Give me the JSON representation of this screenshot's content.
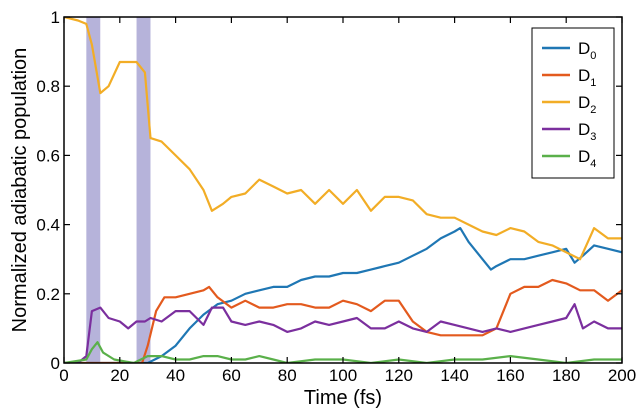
{
  "chart_data": {
    "type": "line",
    "title": "",
    "xlabel": "Time (fs)",
    "ylabel": "Normalized adiabatic population",
    "xlim": [
      0,
      200
    ],
    "ylim": [
      0,
      1
    ],
    "xticks": [
      0,
      20,
      40,
      60,
      80,
      100,
      120,
      140,
      160,
      180,
      200
    ],
    "yticks": [
      0,
      0.2,
      0.4,
      0.6,
      0.8,
      1
    ],
    "ytick_labels": [
      "0",
      "0.2",
      "0.4",
      "0.6",
      "0.8",
      "1"
    ],
    "grid": false,
    "legend": "top-right",
    "shaded_regions": [
      [
        8,
        13
      ],
      [
        26,
        31
      ]
    ],
    "shade_color": "#a9a6d4",
    "series": [
      {
        "name": "D",
        "sub": "0",
        "color": "#1f77b4",
        "points": [
          [
            0,
            0
          ],
          [
            30,
            0
          ],
          [
            35,
            0.02
          ],
          [
            40,
            0.05
          ],
          [
            45,
            0.1
          ],
          [
            50,
            0.14
          ],
          [
            55,
            0.17
          ],
          [
            60,
            0.18
          ],
          [
            65,
            0.2
          ],
          [
            70,
            0.21
          ],
          [
            75,
            0.22
          ],
          [
            80,
            0.22
          ],
          [
            85,
            0.24
          ],
          [
            90,
            0.25
          ],
          [
            95,
            0.25
          ],
          [
            100,
            0.26
          ],
          [
            105,
            0.26
          ],
          [
            110,
            0.27
          ],
          [
            115,
            0.28
          ],
          [
            120,
            0.29
          ],
          [
            125,
            0.31
          ],
          [
            130,
            0.33
          ],
          [
            135,
            0.36
          ],
          [
            140,
            0.38
          ],
          [
            142,
            0.39
          ],
          [
            145,
            0.35
          ],
          [
            150,
            0.3
          ],
          [
            153,
            0.27
          ],
          [
            155,
            0.28
          ],
          [
            160,
            0.3
          ],
          [
            165,
            0.3
          ],
          [
            170,
            0.31
          ],
          [
            175,
            0.32
          ],
          [
            180,
            0.33
          ],
          [
            183,
            0.29
          ],
          [
            186,
            0.31
          ],
          [
            190,
            0.34
          ],
          [
            195,
            0.33
          ],
          [
            200,
            0.32
          ]
        ]
      },
      {
        "name": "D",
        "sub": "1",
        "color": "#e35a1e",
        "points": [
          [
            0,
            0
          ],
          [
            28,
            0
          ],
          [
            30,
            0.05
          ],
          [
            33,
            0.15
          ],
          [
            36,
            0.19
          ],
          [
            40,
            0.19
          ],
          [
            45,
            0.2
          ],
          [
            50,
            0.21
          ],
          [
            52,
            0.22
          ],
          [
            55,
            0.19
          ],
          [
            60,
            0.16
          ],
          [
            65,
            0.18
          ],
          [
            70,
            0.16
          ],
          [
            75,
            0.16
          ],
          [
            80,
            0.17
          ],
          [
            85,
            0.17
          ],
          [
            90,
            0.16
          ],
          [
            95,
            0.16
          ],
          [
            100,
            0.18
          ],
          [
            105,
            0.17
          ],
          [
            110,
            0.15
          ],
          [
            115,
            0.18
          ],
          [
            120,
            0.18
          ],
          [
            125,
            0.12
          ],
          [
            130,
            0.09
          ],
          [
            135,
            0.08
          ],
          [
            140,
            0.08
          ],
          [
            145,
            0.08
          ],
          [
            150,
            0.08
          ],
          [
            155,
            0.1
          ],
          [
            160,
            0.2
          ],
          [
            165,
            0.22
          ],
          [
            170,
            0.22
          ],
          [
            175,
            0.24
          ],
          [
            180,
            0.23
          ],
          [
            185,
            0.21
          ],
          [
            190,
            0.21
          ],
          [
            195,
            0.18
          ],
          [
            200,
            0.21
          ]
        ]
      },
      {
        "name": "D",
        "sub": "2",
        "color": "#f2ad26",
        "points": [
          [
            0,
            1
          ],
          [
            5,
            0.99
          ],
          [
            8,
            0.98
          ],
          [
            10,
            0.92
          ],
          [
            13,
            0.78
          ],
          [
            16,
            0.8
          ],
          [
            20,
            0.87
          ],
          [
            23,
            0.87
          ],
          [
            26,
            0.87
          ],
          [
            29,
            0.84
          ],
          [
            31,
            0.65
          ],
          [
            35,
            0.64
          ],
          [
            40,
            0.6
          ],
          [
            45,
            0.56
          ],
          [
            50,
            0.5
          ],
          [
            53,
            0.44
          ],
          [
            57,
            0.46
          ],
          [
            60,
            0.48
          ],
          [
            65,
            0.49
          ],
          [
            70,
            0.53
          ],
          [
            75,
            0.51
          ],
          [
            80,
            0.49
          ],
          [
            85,
            0.5
          ],
          [
            90,
            0.46
          ],
          [
            95,
            0.5
          ],
          [
            100,
            0.46
          ],
          [
            105,
            0.5
          ],
          [
            110,
            0.44
          ],
          [
            115,
            0.48
          ],
          [
            120,
            0.48
          ],
          [
            125,
            0.47
          ],
          [
            130,
            0.43
          ],
          [
            135,
            0.42
          ],
          [
            140,
            0.42
          ],
          [
            145,
            0.4
          ],
          [
            150,
            0.38
          ],
          [
            155,
            0.37
          ],
          [
            160,
            0.39
          ],
          [
            165,
            0.38
          ],
          [
            170,
            0.35
          ],
          [
            175,
            0.34
          ],
          [
            180,
            0.32
          ],
          [
            185,
            0.3
          ],
          [
            190,
            0.39
          ],
          [
            195,
            0.36
          ],
          [
            200,
            0.36
          ]
        ]
      },
      {
        "name": "D",
        "sub": "3",
        "color": "#7b2f9e",
        "points": [
          [
            0,
            0
          ],
          [
            5,
            0
          ],
          [
            8,
            0.02
          ],
          [
            10,
            0.15
          ],
          [
            13,
            0.16
          ],
          [
            16,
            0.13
          ],
          [
            20,
            0.12
          ],
          [
            23,
            0.1
          ],
          [
            26,
            0.12
          ],
          [
            29,
            0.12
          ],
          [
            31,
            0.13
          ],
          [
            35,
            0.12
          ],
          [
            40,
            0.15
          ],
          [
            45,
            0.15
          ],
          [
            50,
            0.11
          ],
          [
            53,
            0.16
          ],
          [
            57,
            0.16
          ],
          [
            60,
            0.12
          ],
          [
            65,
            0.11
          ],
          [
            70,
            0.12
          ],
          [
            75,
            0.11
          ],
          [
            80,
            0.09
          ],
          [
            85,
            0.1
          ],
          [
            90,
            0.12
          ],
          [
            95,
            0.11
          ],
          [
            100,
            0.12
          ],
          [
            105,
            0.13
          ],
          [
            110,
            0.1
          ],
          [
            115,
            0.1
          ],
          [
            120,
            0.12
          ],
          [
            125,
            0.1
          ],
          [
            130,
            0.09
          ],
          [
            135,
            0.12
          ],
          [
            140,
            0.11
          ],
          [
            145,
            0.1
          ],
          [
            150,
            0.09
          ],
          [
            155,
            0.1
          ],
          [
            160,
            0.09
          ],
          [
            165,
            0.1
          ],
          [
            170,
            0.11
          ],
          [
            175,
            0.12
          ],
          [
            180,
            0.13
          ],
          [
            183,
            0.17
          ],
          [
            186,
            0.1
          ],
          [
            190,
            0.12
          ],
          [
            195,
            0.1
          ],
          [
            200,
            0.1
          ]
        ]
      },
      {
        "name": "D",
        "sub": "4",
        "color": "#5ab04a",
        "points": [
          [
            0,
            0
          ],
          [
            8,
            0.01
          ],
          [
            10,
            0.04
          ],
          [
            12,
            0.06
          ],
          [
            14,
            0.03
          ],
          [
            18,
            0.01
          ],
          [
            25,
            0
          ],
          [
            30,
            0.02
          ],
          [
            35,
            0.02
          ],
          [
            40,
            0.01
          ],
          [
            45,
            0.01
          ],
          [
            50,
            0.02
          ],
          [
            55,
            0.02
          ],
          [
            60,
            0.01
          ],
          [
            65,
            0.01
          ],
          [
            70,
            0.02
          ],
          [
            75,
            0.01
          ],
          [
            80,
            0
          ],
          [
            90,
            0.01
          ],
          [
            100,
            0.01
          ],
          [
            110,
            0
          ],
          [
            120,
            0.01
          ],
          [
            130,
            0
          ],
          [
            140,
            0.01
          ],
          [
            150,
            0.01
          ],
          [
            160,
            0.02
          ],
          [
            170,
            0.01
          ],
          [
            180,
            0
          ],
          [
            190,
            0.01
          ],
          [
            200,
            0.01
          ]
        ]
      }
    ]
  }
}
